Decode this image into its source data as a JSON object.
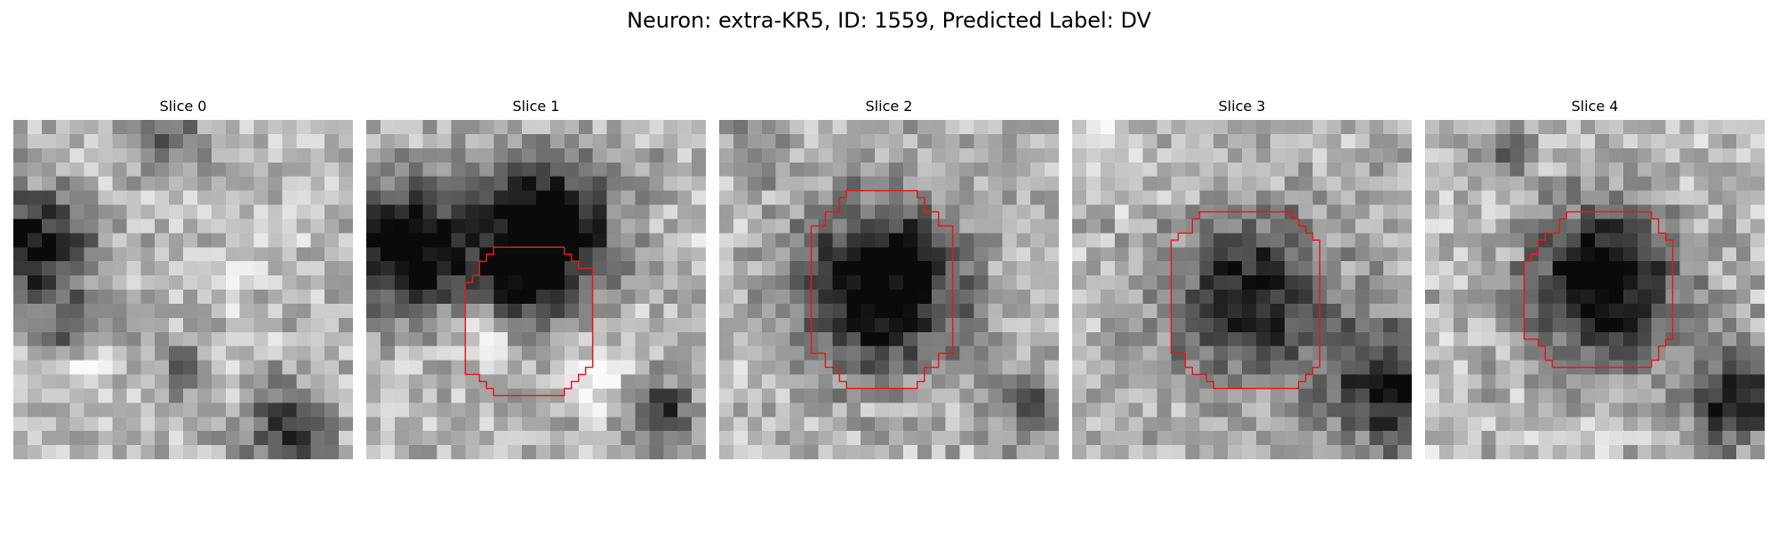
{
  "figure": {
    "title": "Neuron: extra-KR5, ID: 1559, Predicted Label: DV"
  },
  "colors": {
    "contour": "#e41a1c",
    "background": "#ffffff"
  },
  "image": {
    "colormap": "grayscale",
    "grid_size": 24
  },
  "panels": [
    {
      "title": "Slice 0",
      "has_contour": false,
      "blobs": [
        {
          "cx": 1.5,
          "cy": 9.0,
          "r": 4.0,
          "depth": 0.72
        },
        {
          "cx": 4.0,
          "cy": 14.5,
          "r": 2.5,
          "depth": 0.35
        },
        {
          "cx": 12.0,
          "cy": 17.5,
          "r": 1.8,
          "depth": 0.45
        },
        {
          "cx": 19.5,
          "cy": 22.0,
          "r": 3.2,
          "depth": 0.55
        },
        {
          "cx": 11.0,
          "cy": 1.0,
          "r": 3.0,
          "depth": 0.35
        },
        {
          "cx": 16.0,
          "cy": 11.0,
          "r": 2.0,
          "depth": -0.15
        },
        {
          "cx": 5.5,
          "cy": 17.5,
          "r": 2.0,
          "depth": -0.2
        }
      ]
    },
    {
      "title": "Slice 1",
      "has_contour": true,
      "contour": [
        [
          8.0,
          10.0
        ],
        [
          8.5,
          10.0
        ],
        [
          8.5,
          9.5
        ],
        [
          9.0,
          9.5
        ],
        [
          9.0,
          9.0
        ],
        [
          14.0,
          9.0
        ],
        [
          14.0,
          9.5
        ],
        [
          14.5,
          9.5
        ],
        [
          14.5,
          10.0
        ],
        [
          15.0,
          10.0
        ],
        [
          15.0,
          10.5
        ],
        [
          16.0,
          10.5
        ],
        [
          16.0,
          17.5
        ],
        [
          15.5,
          17.5
        ],
        [
          15.5,
          18.0
        ],
        [
          15.0,
          18.0
        ],
        [
          15.0,
          18.5
        ],
        [
          14.5,
          18.5
        ],
        [
          14.5,
          19.0
        ],
        [
          14.0,
          19.0
        ],
        [
          14.0,
          19.5
        ],
        [
          9.0,
          19.5
        ],
        [
          9.0,
          19.0
        ],
        [
          8.5,
          19.0
        ],
        [
          8.5,
          18.5
        ],
        [
          8.0,
          18.5
        ],
        [
          8.0,
          18.0
        ],
        [
          7.0,
          18.0
        ],
        [
          7.0,
          11.5
        ],
        [
          7.5,
          11.5
        ],
        [
          7.5,
          11.0
        ],
        [
          8.0,
          11.0
        ]
      ],
      "blobs": [
        {
          "cx": 3.0,
          "cy": 9.0,
          "r": 5.0,
          "depth": 0.85
        },
        {
          "cx": 13.0,
          "cy": 7.5,
          "r": 5.0,
          "depth": 0.85
        },
        {
          "cx": 11.0,
          "cy": 11.5,
          "r": 3.5,
          "depth": 0.5
        },
        {
          "cx": 21.0,
          "cy": 20.5,
          "r": 2.5,
          "depth": 0.55
        },
        {
          "cx": 8.5,
          "cy": 15.5,
          "r": 2.2,
          "depth": -0.3
        },
        {
          "cx": 16.5,
          "cy": 18.5,
          "r": 2.0,
          "depth": -0.3
        }
      ]
    },
    {
      "title": "Slice 2",
      "has_contour": true,
      "contour": [
        [
          8.5,
          5.5
        ],
        [
          9.0,
          5.5
        ],
        [
          9.0,
          5.0
        ],
        [
          14.0,
          5.0
        ],
        [
          14.0,
          5.5
        ],
        [
          14.5,
          5.5
        ],
        [
          14.5,
          6.5
        ],
        [
          15.5,
          6.5
        ],
        [
          15.5,
          7.5
        ],
        [
          16.5,
          7.5
        ],
        [
          16.5,
          16.5
        ],
        [
          15.5,
          16.5
        ],
        [
          15.5,
          17.5
        ],
        [
          14.5,
          17.5
        ],
        [
          14.5,
          18.5
        ],
        [
          14.0,
          18.5
        ],
        [
          14.0,
          19.0
        ],
        [
          9.0,
          19.0
        ],
        [
          9.0,
          18.5
        ],
        [
          8.5,
          18.5
        ],
        [
          8.5,
          17.5
        ],
        [
          7.5,
          17.5
        ],
        [
          7.5,
          16.5
        ],
        [
          6.5,
          16.5
        ],
        [
          6.5,
          7.5
        ],
        [
          7.5,
          7.5
        ],
        [
          7.5,
          6.5
        ],
        [
          8.5,
          6.5
        ]
      ],
      "blobs": [
        {
          "cx": 11.5,
          "cy": 11.8,
          "r": 6.2,
          "depth": 0.85
        },
        {
          "cx": 22.0,
          "cy": 20.5,
          "r": 2.5,
          "depth": 0.45
        },
        {
          "cx": 3.0,
          "cy": 1.5,
          "r": 2.5,
          "depth": 0.2
        }
      ]
    },
    {
      "title": "Slice 3",
      "has_contour": true,
      "contour": [
        [
          8.5,
          7.0
        ],
        [
          9.0,
          7.0
        ],
        [
          9.0,
          6.5
        ],
        [
          15.5,
          6.5
        ],
        [
          15.5,
          7.0
        ],
        [
          16.0,
          7.0
        ],
        [
          16.0,
          7.5
        ],
        [
          16.5,
          7.5
        ],
        [
          16.5,
          8.0
        ],
        [
          17.0,
          8.0
        ],
        [
          17.0,
          8.5
        ],
        [
          17.5,
          8.5
        ],
        [
          17.5,
          17.5
        ],
        [
          17.0,
          17.5
        ],
        [
          17.0,
          18.0
        ],
        [
          16.5,
          18.0
        ],
        [
          16.5,
          18.5
        ],
        [
          16.0,
          18.5
        ],
        [
          16.0,
          19.0
        ],
        [
          10.0,
          19.0
        ],
        [
          10.0,
          18.5
        ],
        [
          9.5,
          18.5
        ],
        [
          9.5,
          18.0
        ],
        [
          8.5,
          18.0
        ],
        [
          8.5,
          17.5
        ],
        [
          8.0,
          17.5
        ],
        [
          8.0,
          16.5
        ],
        [
          7.0,
          16.5
        ],
        [
          7.0,
          8.5
        ],
        [
          7.5,
          8.5
        ],
        [
          7.5,
          8.0
        ],
        [
          8.5,
          8.0
        ]
      ],
      "blobs": [
        {
          "cx": 12.8,
          "cy": 12.8,
          "r": 6.5,
          "depth": 0.6
        },
        {
          "cx": 22.5,
          "cy": 19.0,
          "r": 4.5,
          "depth": 0.65
        },
        {
          "cx": 1.5,
          "cy": 2.0,
          "r": 2.5,
          "depth": -0.2
        }
      ]
    },
    {
      "title": "Slice 4",
      "has_contour": true,
      "contour": [
        [
          9.5,
          7.0
        ],
        [
          10.0,
          7.0
        ],
        [
          10.0,
          6.5
        ],
        [
          16.0,
          6.5
        ],
        [
          16.0,
          7.0
        ],
        [
          16.5,
          7.0
        ],
        [
          16.5,
          8.0
        ],
        [
          17.0,
          8.0
        ],
        [
          17.0,
          8.5
        ],
        [
          17.5,
          8.5
        ],
        [
          17.5,
          15.5
        ],
        [
          17.0,
          15.5
        ],
        [
          17.0,
          16.0
        ],
        [
          16.5,
          16.0
        ],
        [
          16.5,
          17.0
        ],
        [
          16.0,
          17.0
        ],
        [
          16.0,
          17.5
        ],
        [
          9.0,
          17.5
        ],
        [
          9.0,
          17.0
        ],
        [
          8.5,
          17.0
        ],
        [
          8.5,
          16.0
        ],
        [
          8.0,
          16.0
        ],
        [
          8.0,
          15.5
        ],
        [
          7.0,
          15.5
        ],
        [
          7.0,
          10.0
        ],
        [
          7.5,
          10.0
        ],
        [
          7.5,
          9.5
        ],
        [
          8.0,
          9.5
        ],
        [
          8.0,
          8.5
        ],
        [
          8.5,
          8.5
        ],
        [
          8.5,
          8.0
        ],
        [
          9.5,
          8.0
        ]
      ],
      "blobs": [
        {
          "cx": 12.5,
          "cy": 11.5,
          "r": 5.5,
          "depth": 0.85
        },
        {
          "cx": 22.0,
          "cy": 19.5,
          "r": 4.0,
          "depth": 0.6
        },
        {
          "cx": 6.0,
          "cy": 2.5,
          "r": 2.0,
          "depth": 0.3
        }
      ]
    }
  ]
}
